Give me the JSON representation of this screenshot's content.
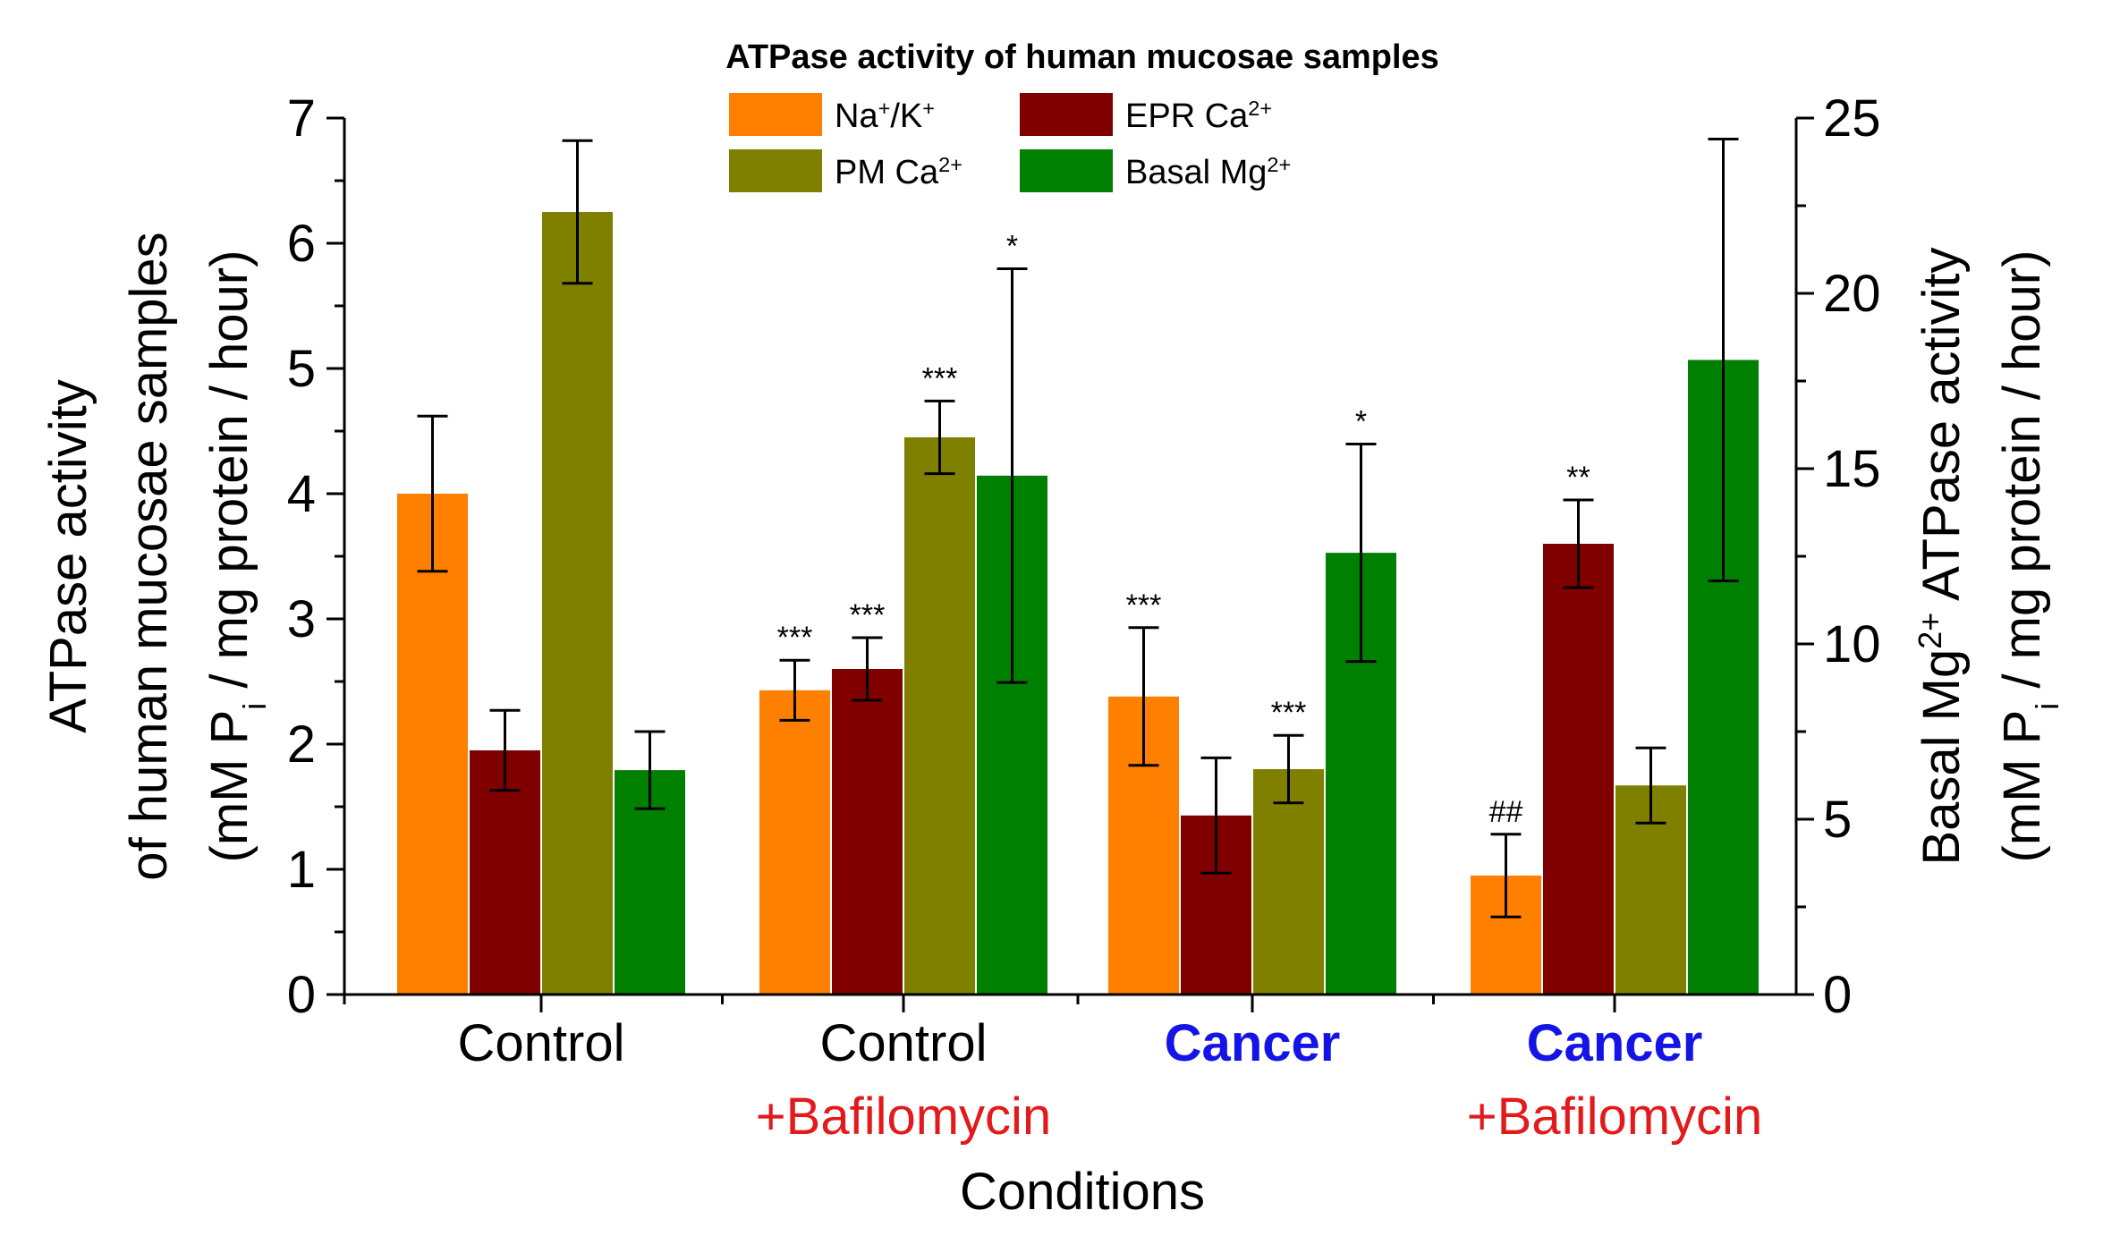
{
  "chart_data": {
    "type": "bar",
    "title": "ATPase activity of human mucosae samples",
    "xlabel": "Conditions",
    "ylabel_left": [
      "ATPase activity",
      "of human mucosae samples",
      "(mM P|i| / mg protein / hour)"
    ],
    "ylabel_right": [
      "Basal Mg|2+| ATPase activity",
      "(mM P|i| / mg protein / hour)"
    ],
    "ylim_left": [
      0,
      7
    ],
    "ylim_right": [
      0,
      25
    ],
    "yticks_left": [
      0,
      1,
      2,
      3,
      4,
      5,
      6,
      7
    ],
    "yticks_right": [
      0,
      5,
      10,
      15,
      20,
      25
    ],
    "categories": [
      {
        "line1": "Control",
        "line2": "",
        "color1": "#000000",
        "bold1": false,
        "color2": "#e31a1c"
      },
      {
        "line1": "Control",
        "line2": "+Bafilomycin",
        "color1": "#000000",
        "bold1": false,
        "color2": "#e31a1c"
      },
      {
        "line1": "Cancer",
        "line2": "",
        "color1": "#1414e6",
        "bold1": true,
        "color2": "#e31a1c"
      },
      {
        "line1": "Cancer",
        "line2": "+Bafilomycin",
        "color1": "#1414e6",
        "bold1": true,
        "color2": "#e31a1c"
      }
    ],
    "series": [
      {
        "name": "Na+/K+",
        "legend_base": "Na",
        "legend_sup1": "+",
        "legend_mid": "/K",
        "legend_sup2": "+",
        "color": "#ff8000",
        "axis": "left",
        "values": [
          4.0,
          2.43,
          2.38,
          0.95
        ],
        "errors": [
          0.62,
          0.24,
          0.55,
          0.33
        ],
        "annotations": [
          "",
          "***",
          "***",
          "##"
        ]
      },
      {
        "name": "EPR Ca2+",
        "legend_base": "EPR Ca",
        "legend_sup1": "2+",
        "legend_mid": "",
        "legend_sup2": "",
        "color": "#800000",
        "axis": "left",
        "values": [
          1.95,
          2.6,
          1.43,
          3.6
        ],
        "errors": [
          0.32,
          0.25,
          0.46,
          0.35
        ],
        "annotations": [
          "",
          "***",
          "",
          "**"
        ]
      },
      {
        "name": "PM Ca2+",
        "legend_base": "PM Ca",
        "legend_sup1": "2+",
        "legend_mid": "",
        "legend_sup2": "",
        "color": "#808000",
        "axis": "left",
        "values": [
          6.25,
          4.45,
          1.8,
          1.67
        ],
        "errors": [
          0.57,
          0.29,
          0.27,
          0.3
        ],
        "annotations": [
          "",
          "***",
          "***",
          ""
        ]
      },
      {
        "name": "Basal Mg2+",
        "legend_base": "Basal Mg",
        "legend_sup1": "2+",
        "legend_mid": "",
        "legend_sup2": "",
        "color": "#008000",
        "axis": "right",
        "values": [
          6.4,
          14.8,
          12.6,
          18.1
        ],
        "errors": [
          1.1,
          5.9,
          3.1,
          6.3
        ],
        "annotations": [
          "",
          "*",
          "*",
          ""
        ]
      }
    ],
    "legend_position": "top-center"
  }
}
